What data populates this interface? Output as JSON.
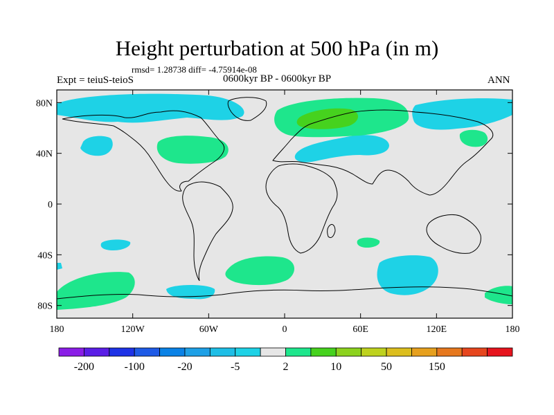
{
  "title": "Height perturbation at 500 hPa (in m)",
  "stats": "rmsd= 1.28738 diff= -4.75914e-08",
  "left_label": "Expt = teiuS-teioS",
  "center_label": "0600kyr BP - 0600kyr BP",
  "right_label": "ANN",
  "lat_ticks": [
    "80N",
    "40N",
    "0",
    "40S",
    "80S"
  ],
  "lat_values": [
    80,
    40,
    0,
    -40,
    -80
  ],
  "lon_ticks": [
    "180",
    "120W",
    "60W",
    "0",
    "60E",
    "120E",
    "180"
  ],
  "lon_values": [
    -180,
    -120,
    -60,
    0,
    60,
    120,
    180
  ],
  "colorbar": {
    "colors": [
      "#8a1ee6",
      "#5a1ee6",
      "#1e32e6",
      "#1e5ae6",
      "#0a82e6",
      "#1ea0e6",
      "#1ebee6",
      "#1ed2e6",
      "#e6e6e6",
      "#1ee68c",
      "#46d21e",
      "#8cd21e",
      "#bed21e",
      "#dcbe1e",
      "#e6a01e",
      "#e6781e",
      "#e6461e",
      "#e6141e"
    ],
    "labels": [
      "-200",
      "-100",
      "-20",
      "-5",
      "2",
      "10",
      "50",
      "150"
    ]
  },
  "colors": {
    "background_field": "#e6e6e6",
    "negative_fill": "#1ed2e6",
    "positive_fill": "#1ee68c",
    "strong_positive_fill": "#46d21e",
    "coastline": "#000000"
  }
}
